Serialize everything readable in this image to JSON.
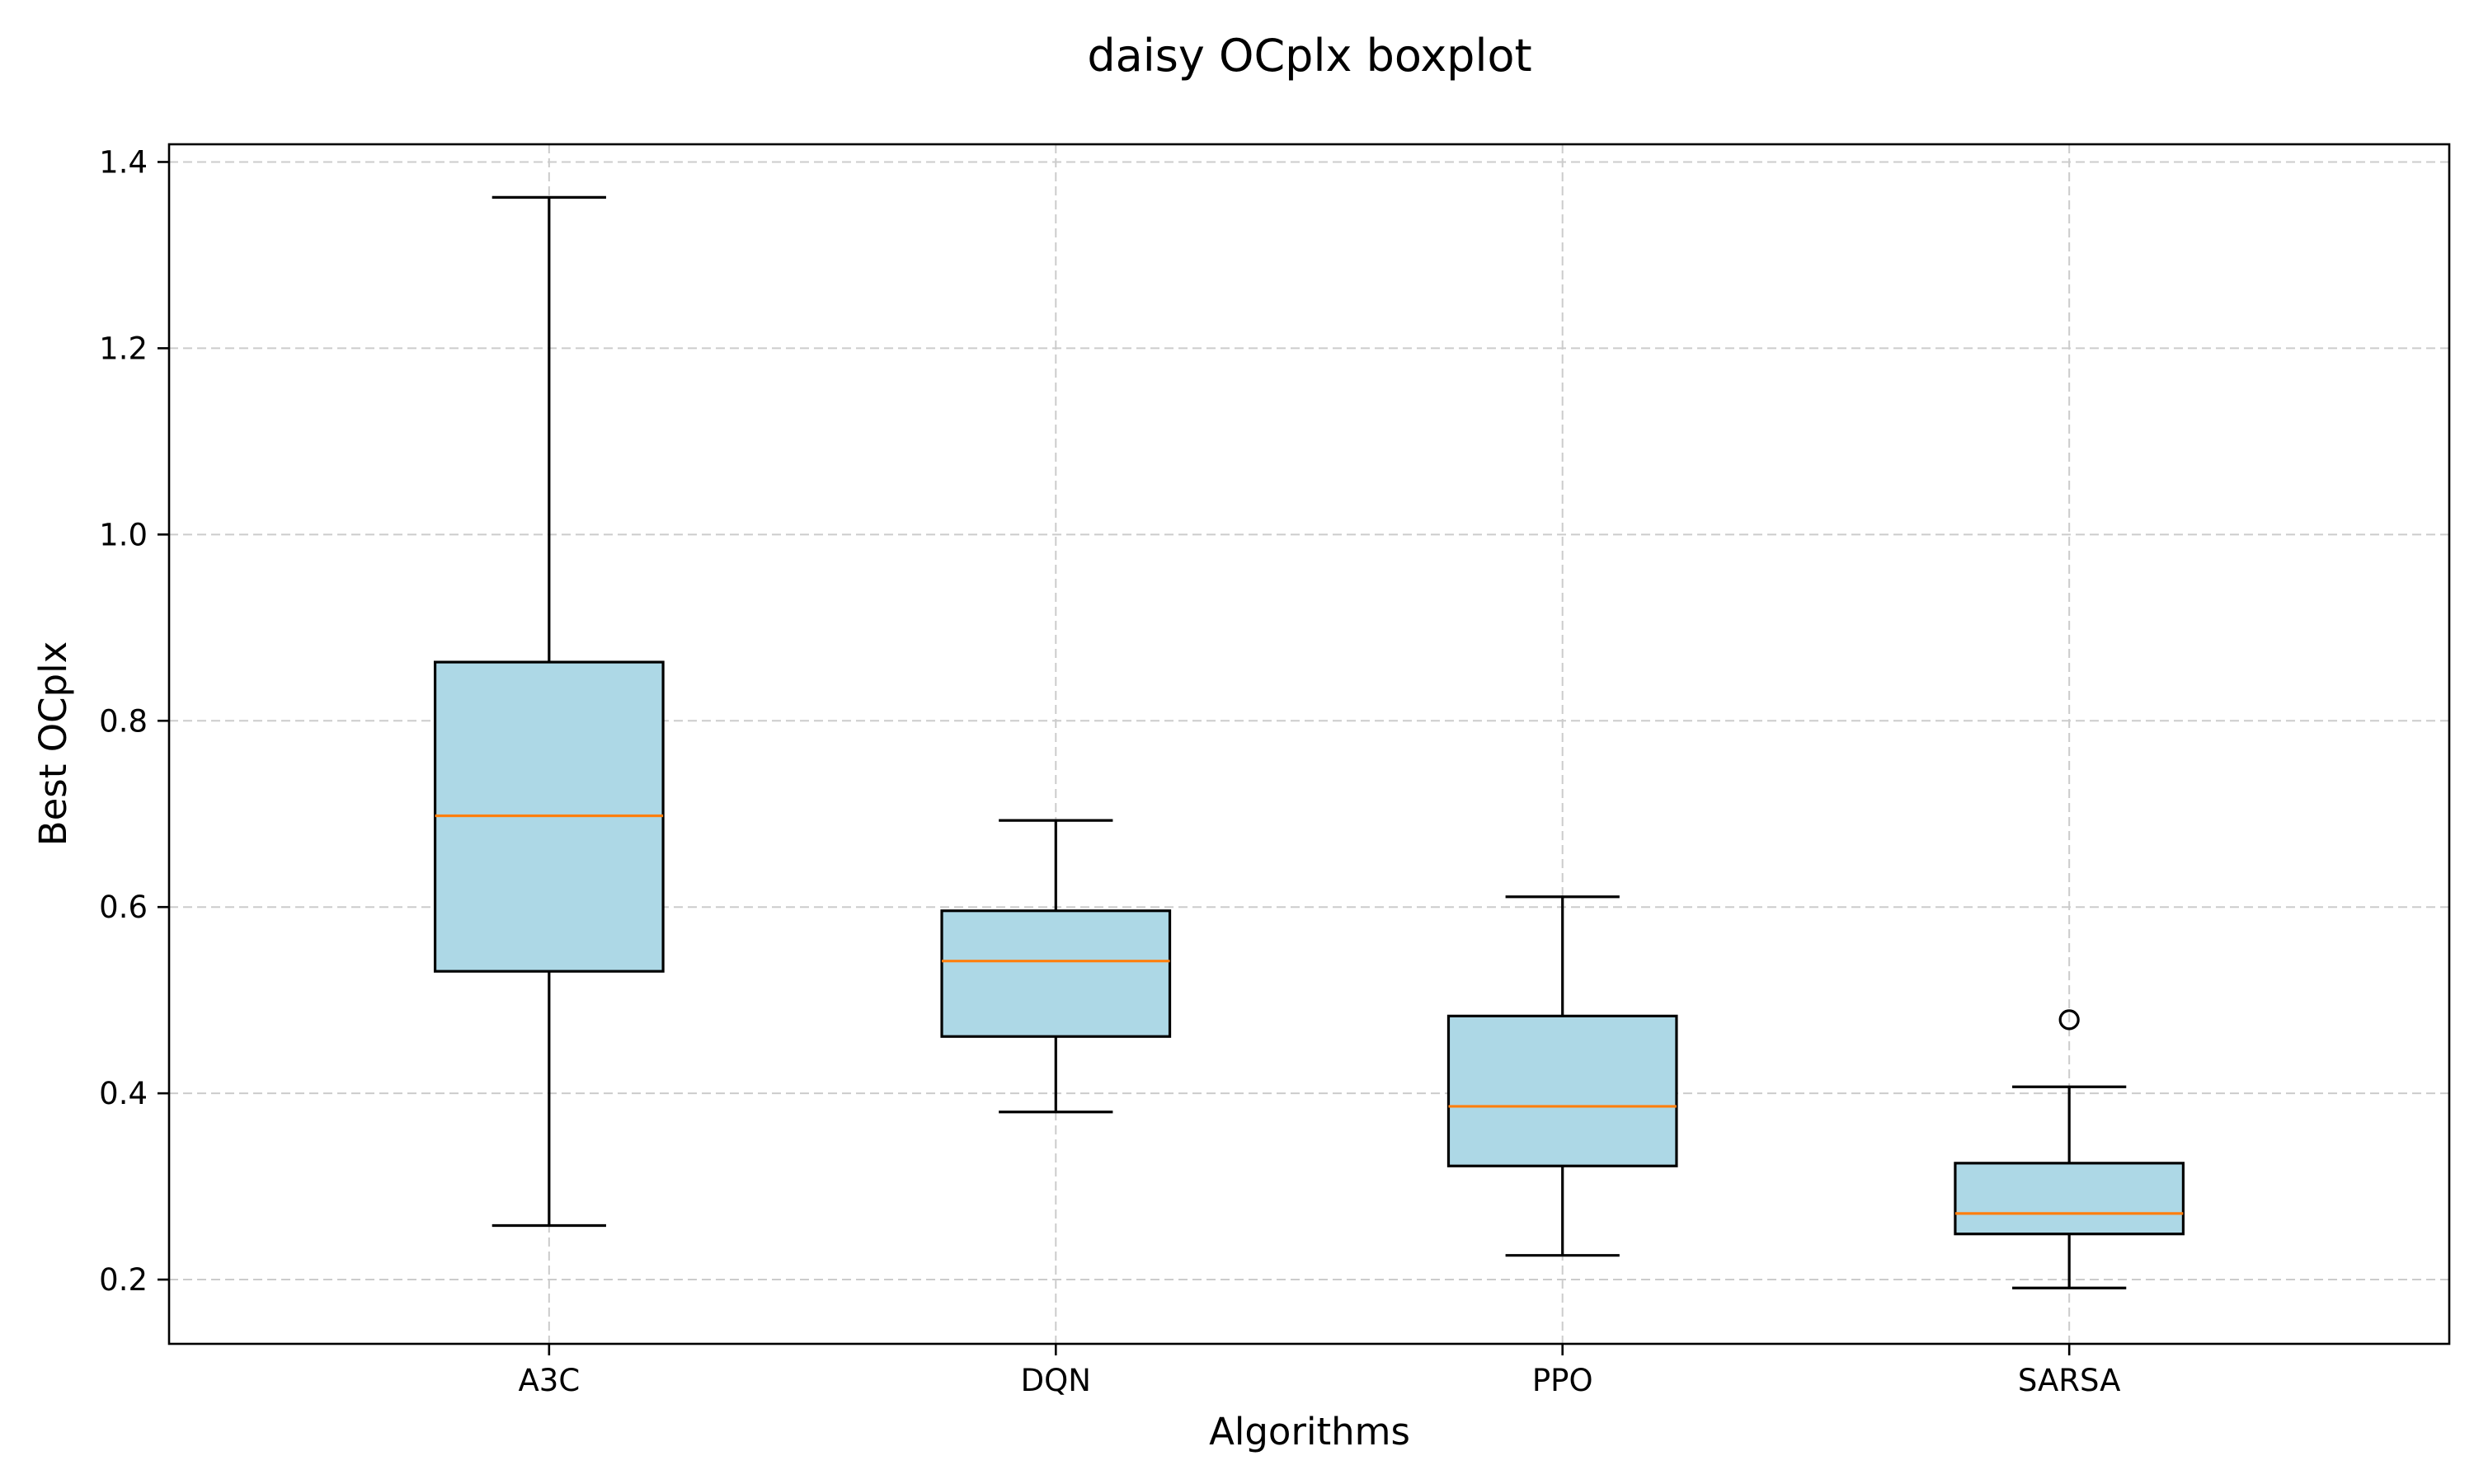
{
  "chart_data": {
    "type": "boxplot",
    "title": "daisy OCplx boxplot",
    "xlabel": "Algorithms",
    "ylabel": "Best OCplx",
    "categories": [
      "A3C",
      "DQN",
      "PPO",
      "SARSA"
    ],
    "boxes": [
      {
        "label": "A3C",
        "whisker_low": 0.258,
        "q1": 0.531,
        "median": 0.698,
        "q3": 0.863,
        "whisker_high": 1.362,
        "outliers": []
      },
      {
        "label": "DQN",
        "whisker_low": 0.38,
        "q1": 0.461,
        "median": 0.542,
        "q3": 0.596,
        "whisker_high": 0.693,
        "outliers": []
      },
      {
        "label": "PPO",
        "whisker_low": 0.226,
        "q1": 0.322,
        "median": 0.386,
        "q3": 0.483,
        "whisker_high": 0.611,
        "outliers": []
      },
      {
        "label": "SARSA",
        "whisker_low": 0.191,
        "q1": 0.249,
        "median": 0.271,
        "q3": 0.325,
        "whisker_high": 0.407,
        "outliers": [
          0.479
        ]
      }
    ],
    "yticks": [
      0.2,
      0.4,
      0.6,
      0.8,
      1.0,
      1.2,
      1.4
    ],
    "ytick_labels": [
      "0.2",
      "0.4",
      "0.6",
      "0.8",
      "1.0",
      "1.2",
      "1.4"
    ],
    "ylim": [
      0.131,
      1.419
    ],
    "grid": true,
    "colors": {
      "box_fill": "#add8e6",
      "median": "#ff7f0e",
      "grid": "#cccccc"
    }
  }
}
